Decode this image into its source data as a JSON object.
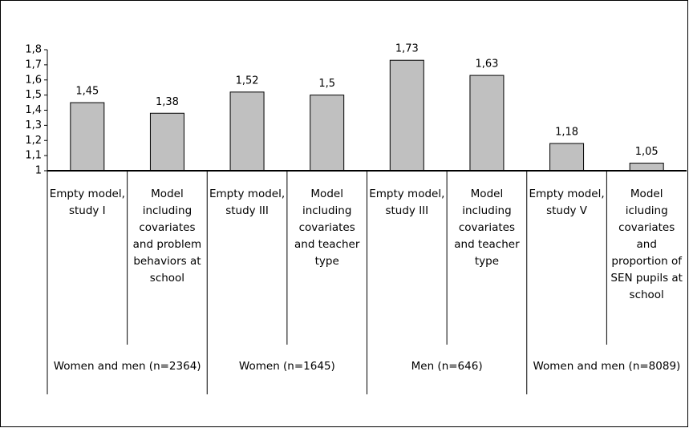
{
  "chart_data": {
    "type": "bar",
    "categories": [
      "Empty model, study I",
      "Model including covariates and problem behaviors at school",
      "Empty model, study III",
      "Model including covariates and teacher type",
      "Empty model, study III",
      "Model including covariates and teacher type",
      "Empty model, study V",
      "Model icluding covariates and proportion of SEN pupils at school"
    ],
    "groups": [
      "Women and men (n=2364)",
      "Women (n=1645)",
      "Men (n=646)",
      "Women and men (n=8089)"
    ],
    "values": [
      1.45,
      1.38,
      1.52,
      1.5,
      1.73,
      1.63,
      1.18,
      1.05
    ],
    "value_labels": [
      "1,45",
      "1,38",
      "1,52",
      "1,5",
      "1,73",
      "1,63",
      "1,18",
      "1,05"
    ],
    "color": "#c0c0c0",
    "ylim": [
      1,
      1.8
    ],
    "yticks": [
      1,
      {
        "value": 1.1,
        "label": "1,1"
      },
      {
        "value": 1.2,
        "label": "1,2"
      },
      {
        "value": 1.3,
        "label": "1,3"
      },
      {
        "value": 1.4,
        "label": "1,4"
      },
      {
        "value": 1.5,
        "label": "1,5"
      },
      {
        "value": 1.6,
        "label": "1,6"
      },
      {
        "value": 1.7,
        "label": "1,7"
      },
      {
        "value": 1.8,
        "label": "1,8"
      }
    ]
  }
}
